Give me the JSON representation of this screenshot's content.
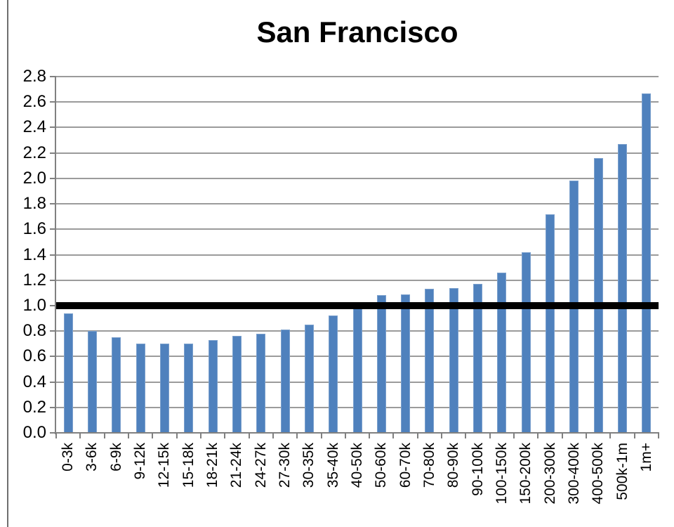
{
  "page": {
    "background": "#ffffff",
    "left_edge_line_color": "#6f6f6f"
  },
  "chart_data": {
    "type": "bar",
    "title": "San Francisco",
    "xlabel": "",
    "ylabel": "",
    "categories": [
      "0-3k",
      "3-6k",
      "6-9k",
      "9-12k",
      "12-15k",
      "15-18k",
      "18-21k",
      "21-24k",
      "24-27k",
      "27-30k",
      "30-35k",
      "35-40k",
      "40-50k",
      "50-60k",
      "60-70k",
      "70-80k",
      "80-90k",
      "90-100k",
      "100-150k",
      "150-200k",
      "200-300k",
      "300-400k",
      "400-500k",
      "500k-1m",
      "1m+"
    ],
    "values": [
      0.94,
      0.8,
      0.75,
      0.7,
      0.7,
      0.7,
      0.73,
      0.76,
      0.78,
      0.81,
      0.85,
      0.92,
      1.01,
      1.08,
      1.09,
      1.13,
      1.14,
      1.17,
      1.26,
      1.42,
      1.72,
      1.98,
      2.16,
      2.27,
      2.67
    ],
    "ylim": [
      0,
      2.8
    ],
    "y_ticks": [
      "0.0",
      "0.2",
      "0.4",
      "0.6",
      "0.8",
      "1.0",
      "1.2",
      "1.4",
      "1.6",
      "1.8",
      "2.0",
      "2.2",
      "2.4",
      "2.6",
      "2.8"
    ],
    "grid": true,
    "legend": "none",
    "reference_line": {
      "y": 1.0,
      "color": "#000000"
    },
    "colors": {
      "bar": "#4f81bd",
      "bar_border": "#7ba0cd",
      "gridline": "#9b9b9b",
      "axis": "#808080",
      "reference_line": "#000000",
      "text": "#000000"
    }
  }
}
